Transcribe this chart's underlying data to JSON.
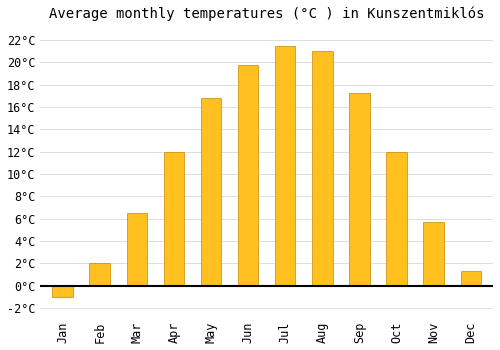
{
  "title": "Average monthly temperatures (°C ) in Kunszentmiklós",
  "months": [
    "Jan",
    "Feb",
    "Mar",
    "Apr",
    "May",
    "Jun",
    "Jul",
    "Aug",
    "Sep",
    "Oct",
    "Nov",
    "Dec"
  ],
  "values": [
    -1.0,
    2.0,
    6.5,
    12.0,
    16.8,
    19.8,
    21.5,
    21.0,
    17.3,
    12.0,
    5.7,
    1.3
  ],
  "bar_color": "#FFC020",
  "bar_edge_color": "#CC8800",
  "background_color": "#FFFFFF",
  "grid_color": "#DDDDDD",
  "yticks": [
    -2,
    0,
    2,
    4,
    6,
    8,
    10,
    12,
    14,
    16,
    18,
    20,
    22
  ],
  "ylim": [
    -2.8,
    23.2
  ],
  "xlim": [
    -0.6,
    11.6
  ],
  "title_fontsize": 10,
  "tick_fontsize": 8.5,
  "font_family": "monospace",
  "bar_width": 0.55
}
